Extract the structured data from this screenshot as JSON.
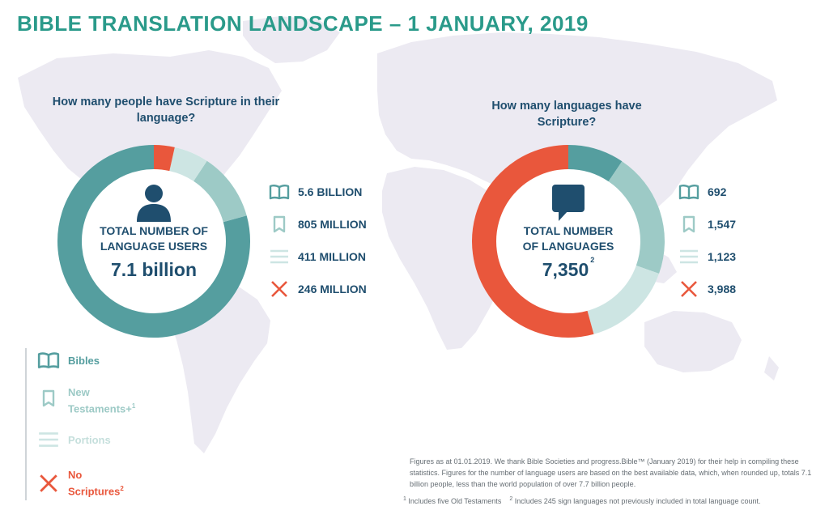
{
  "title": "BIBLE TRANSLATION LANDSCAPE – 1 JANUARY, 2019",
  "colors": {
    "title": "#2a9a8a",
    "text": "#1f4e6e",
    "bibles": "#559e9f",
    "new_testaments": "#9dcac6",
    "portions": "#cde5e3",
    "no_scriptures": "#e9573c",
    "map": "#eceaf2"
  },
  "left": {
    "question": "How many people have Scripture in their language?",
    "center_line1": "TOTAL NUMBER OF",
    "center_line2": "LANGUAGE USERS",
    "center_value": "7.1 billion",
    "center_icon": "person-icon",
    "stats": [
      {
        "icon": "open-book-icon",
        "value": "5.6 BILLION"
      },
      {
        "icon": "bookmark-book-icon",
        "value": "805 MILLION"
      },
      {
        "icon": "lines-icon",
        "value": "411 MILLION"
      },
      {
        "icon": "cross-icon",
        "value": "246 MILLION"
      }
    ]
  },
  "right": {
    "question": "How many languages have Scripture?",
    "center_line1": "TOTAL NUMBER",
    "center_line2": "OF LANGUAGES",
    "center_value": "7,350",
    "center_sup": "2",
    "center_icon": "speech-bubble-icon",
    "stats": [
      {
        "icon": "open-book-icon",
        "value": "692"
      },
      {
        "icon": "bookmark-book-icon",
        "value": "1,547"
      },
      {
        "icon": "lines-icon",
        "value": "1,123"
      },
      {
        "icon": "cross-icon",
        "value": "3,988"
      }
    ]
  },
  "legend": [
    {
      "label": "Bibles",
      "color": "#559e9f",
      "icon": "open-book-icon"
    },
    {
      "label": "New Testaments+",
      "sup": "1",
      "color": "#9dcac6",
      "icon": "bookmark-book-icon"
    },
    {
      "label": "Portions",
      "color": "#cde5e3",
      "icon": "lines-icon"
    },
    {
      "label": "No Scriptures",
      "sup": "2",
      "color": "#e9573c",
      "icon": "cross-icon"
    }
  ],
  "note": "Figures as at 01.01.2019. We thank Bible Societies and progress.Bible™ (January 2019) for their help in compiling these statistics. Figures for the number of language users are based on the best available data, which, when rounded up, totals 7.1 billion people, less than the world population of over 7.7 billion people.",
  "footnote1": "Includes five Old Testaments",
  "footnote2": "Includes 245 sign languages not previously included in total language count.",
  "chart_data": [
    {
      "type": "pie",
      "title": "How many people have Scripture in their language?",
      "categories": [
        "Bibles",
        "New Testaments+",
        "Portions",
        "No Scriptures"
      ],
      "values": [
        5600,
        805,
        411,
        246
      ],
      "unit": "million",
      "labels": [
        "5.6 BILLION",
        "805 MILLION",
        "411 MILLION",
        "246 MILLION"
      ]
    },
    {
      "type": "pie",
      "title": "How many languages have Scripture?",
      "categories": [
        "Bibles",
        "New Testaments+",
        "Portions",
        "No Scriptures"
      ],
      "values": [
        692,
        1547,
        1123,
        3988
      ],
      "labels": [
        "692",
        "1,547",
        "1,123",
        "3,988"
      ]
    }
  ]
}
